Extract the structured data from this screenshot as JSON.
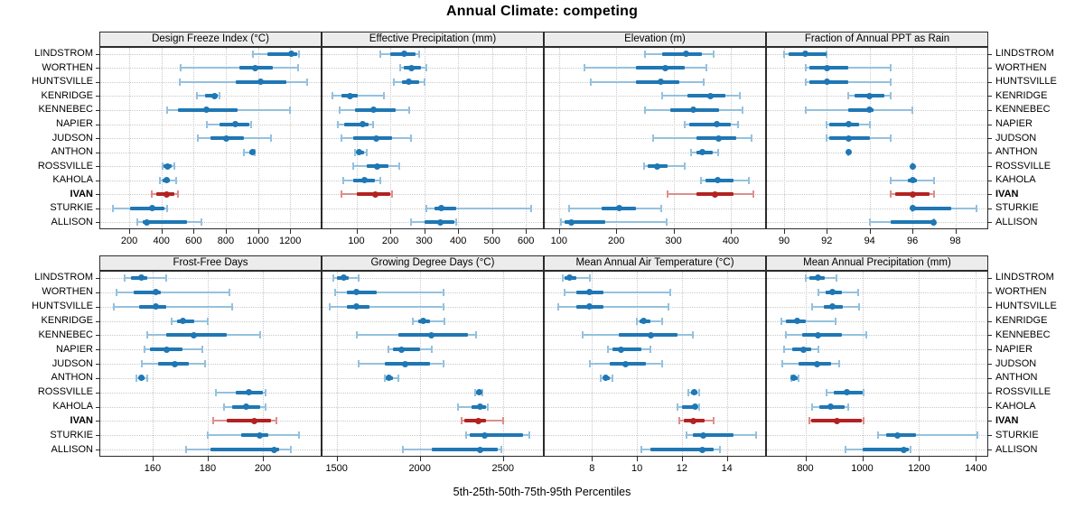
{
  "title": "Annual Climate: competing",
  "caption": "5th-25th-50th-75th-95th Percentiles",
  "colors": {
    "blue_main": "#1f77b4",
    "blue_light": "#94c1de",
    "red_main": "#b22222",
    "red_light": "#dd8f8d",
    "strip_bg": "#ececec",
    "grid": "#c9c9c9",
    "border": "#2b2b2b"
  },
  "chart_data": {
    "type": "dotplot-percentiles",
    "title": "Annual Climate: competing",
    "caption": "5th-25th-50th-75th-95th Percentiles",
    "percentile_labels": [
      "5th",
      "25th",
      "50th",
      "75th",
      "95th"
    ],
    "legend_position": "none",
    "grid": "dotted",
    "highlight": "IVAN",
    "stations": [
      "LINDSTROM",
      "WORTHEN",
      "HUNTSVILLE",
      "KENRIDGE",
      "KENNEBEC",
      "NAPIER",
      "JUDSON",
      "ANTHON",
      "ROSSVILLE",
      "KAHOLA",
      "IVAN",
      "STURKIE",
      "ALLISON"
    ],
    "panels": [
      {
        "title": "Design Freeze Index (°C)",
        "row": 0,
        "col": 0,
        "xlim": [
          20,
          1390
        ],
        "ticks": [
          200,
          400,
          600,
          800,
          1000,
          1200
        ],
        "series": [
          [
            970,
            1060,
            1210,
            1245,
            1255
          ],
          [
            520,
            885,
            985,
            1095,
            1250
          ],
          [
            515,
            860,
            1015,
            1175,
            1305
          ],
          [
            620,
            670,
            730,
            750,
            760
          ],
          [
            435,
            505,
            680,
            875,
            1200
          ],
          [
            685,
            760,
            860,
            945,
            955
          ],
          [
            625,
            705,
            805,
            915,
            1080
          ],
          [
            910,
            945,
            965,
            975,
            980
          ],
          [
            405,
            415,
            440,
            465,
            480
          ],
          [
            390,
            405,
            430,
            450,
            490
          ],
          [
            340,
            370,
            430,
            480,
            505
          ],
          [
            100,
            205,
            345,
            420,
            435
          ],
          [
            250,
            285,
            310,
            560,
            650
          ]
        ]
      },
      {
        "title": "Effective Precipitation (mm)",
        "row": 0,
        "col": 1,
        "xlim": [
          0,
          650
        ],
        "ticks": [
          100,
          200,
          300,
          400,
          500,
          600
        ],
        "series": [
          [
            170,
            200,
            240,
            275,
            285
          ],
          [
            230,
            240,
            262,
            290,
            305
          ],
          [
            210,
            235,
            255,
            285,
            300
          ],
          [
            30,
            55,
            80,
            105,
            180
          ],
          [
            50,
            95,
            150,
            215,
            255
          ],
          [
            45,
            65,
            118,
            135,
            150
          ],
          [
            55,
            90,
            158,
            205,
            260
          ],
          [
            95,
            103,
            108,
            122,
            130
          ],
          [
            90,
            130,
            160,
            195,
            225
          ],
          [
            60,
            90,
            125,
            155,
            170
          ],
          [
            55,
            100,
            155,
            200,
            205
          ],
          [
            305,
            330,
            350,
            395,
            615
          ],
          [
            260,
            300,
            348,
            390,
            395
          ]
        ]
      },
      {
        "title": "Elevation (m)",
        "row": 0,
        "col": 2,
        "xlim": [
          75,
          460
        ],
        "ticks": [
          100,
          200,
          300,
          400
        ],
        "series": [
          [
            250,
            280,
            322,
            350,
            370
          ],
          [
            145,
            235,
            285,
            320,
            358
          ],
          [
            155,
            235,
            278,
            310,
            353
          ],
          [
            280,
            325,
            365,
            390,
            415
          ],
          [
            250,
            295,
            335,
            380,
            420
          ],
          [
            320,
            328,
            375,
            400,
            413
          ],
          [
            265,
            340,
            378,
            410,
            437
          ],
          [
            330,
            340,
            350,
            368,
            378
          ],
          [
            248,
            255,
            272,
            290,
            320
          ],
          [
            348,
            355,
            377,
            405,
            432
          ],
          [
            290,
            340,
            372,
            405,
            440
          ],
          [
            118,
            175,
            205,
            235,
            278
          ],
          [
            103,
            110,
            122,
            180,
            288
          ]
        ]
      },
      {
        "title": "Fraction of Annual PPT as Rain",
        "row": 0,
        "col": 3,
        "xlim": [
          89.2,
          99.5
        ],
        "ticks": [
          90,
          92,
          94,
          96,
          98
        ],
        "series": [
          [
            90,
            90.2,
            91,
            92,
            92
          ],
          [
            91,
            91.2,
            92,
            93,
            95
          ],
          [
            91,
            91.2,
            92,
            93,
            95
          ],
          [
            93,
            93.3,
            94,
            94.7,
            95
          ],
          [
            91,
            93,
            94,
            94.2,
            96
          ],
          [
            92,
            92.1,
            93,
            93.5,
            94
          ],
          [
            92,
            92.1,
            93,
            94,
            95
          ],
          [
            93,
            93,
            93,
            93,
            93
          ],
          [
            96,
            96,
            96,
            96,
            96
          ],
          [
            95,
            95.8,
            96,
            96.2,
            97
          ],
          [
            95,
            95.2,
            96,
            96.8,
            97
          ],
          [
            96,
            96,
            96,
            97.8,
            99
          ],
          [
            94,
            95,
            97,
            97,
            97
          ]
        ]
      },
      {
        "title": "Frost-Free Days",
        "row": 1,
        "col": 0,
        "xlim": [
          141,
          221
        ],
        "ticks": [
          160,
          180,
          200
        ],
        "series": [
          [
            150,
            152,
            156,
            158,
            165
          ],
          [
            147,
            153,
            161,
            163,
            188
          ],
          [
            146,
            155,
            161,
            165,
            189
          ],
          [
            167,
            169,
            171,
            175,
            180
          ],
          [
            158,
            165,
            175,
            187,
            199
          ],
          [
            157,
            159,
            165,
            171,
            178
          ],
          [
            156,
            162,
            168,
            173,
            179
          ],
          [
            154,
            155,
            156,
            157,
            158
          ],
          [
            183,
            190,
            195,
            200,
            201
          ],
          [
            186,
            189,
            194,
            199,
            201
          ],
          [
            182,
            187,
            197,
            203,
            205
          ],
          [
            180,
            192,
            199,
            202,
            213
          ],
          [
            172,
            181,
            204,
            206,
            210
          ]
        ]
      },
      {
        "title": "Growing Degree Days (°C)",
        "row": 1,
        "col": 1,
        "xlim": [
          1415,
          2740
        ],
        "ticks": [
          1500,
          2000,
          2500
        ],
        "series": [
          [
            1480,
            1500,
            1540,
            1570,
            1630
          ],
          [
            1490,
            1560,
            1620,
            1740,
            2140
          ],
          [
            1460,
            1560,
            1620,
            1700,
            2140
          ],
          [
            1960,
            1990,
            2020,
            2060,
            2150
          ],
          [
            1620,
            1870,
            2070,
            2290,
            2340
          ],
          [
            1810,
            1840,
            1890,
            2000,
            2070
          ],
          [
            1630,
            1790,
            1910,
            2060,
            2140
          ],
          [
            1790,
            1795,
            1815,
            1840,
            1870
          ],
          [
            2330,
            2340,
            2355,
            2370,
            2375
          ],
          [
            2230,
            2310,
            2360,
            2400,
            2410
          ],
          [
            2250,
            2270,
            2350,
            2400,
            2500
          ],
          [
            2280,
            2300,
            2390,
            2620,
            2660
          ],
          [
            1900,
            2070,
            2360,
            2470,
            2490
          ]
        ]
      },
      {
        "title": "Mean Annual Air Temperature (°C)",
        "row": 1,
        "col": 2,
        "xlim": [
          5.9,
          15.7
        ],
        "ticks": [
          8,
          10,
          12,
          14
        ],
        "series": [
          [
            6.7,
            6.8,
            7.0,
            7.3,
            7.9
          ],
          [
            6.8,
            7.3,
            7.9,
            8.5,
            11.5
          ],
          [
            6.5,
            7.3,
            7.9,
            8.5,
            11.4
          ],
          [
            10.0,
            10.1,
            10.3,
            10.6,
            11.1
          ],
          [
            7.6,
            9.2,
            10.6,
            11.8,
            12.5
          ],
          [
            8.7,
            8.9,
            9.3,
            10.2,
            10.6
          ],
          [
            7.9,
            8.8,
            9.5,
            10.4,
            11.1
          ],
          [
            8.4,
            8.5,
            8.6,
            8.8,
            8.9
          ],
          [
            12.3,
            12.4,
            12.55,
            12.7,
            12.75
          ],
          [
            11.8,
            12.0,
            12.6,
            12.65,
            12.75
          ],
          [
            11.9,
            12.1,
            12.5,
            13.0,
            13.4
          ],
          [
            12.2,
            12.5,
            12.95,
            14.3,
            15.3
          ],
          [
            10.2,
            10.6,
            12.9,
            13.4,
            13.7
          ]
        ]
      },
      {
        "title": "Mean Annual Precipitation (mm)",
        "row": 1,
        "col": 3,
        "xlim": [
          665,
          1440
        ],
        "ticks": [
          800,
          1000,
          1200,
          1400
        ],
        "series": [
          [
            800,
            815,
            845,
            870,
            910
          ],
          [
            845,
            870,
            895,
            930,
            985
          ],
          [
            825,
            865,
            895,
            930,
            990
          ],
          [
            715,
            730,
            770,
            800,
            905
          ],
          [
            730,
            790,
            845,
            930,
            1015
          ],
          [
            725,
            755,
            795,
            820,
            845
          ],
          [
            720,
            775,
            840,
            890,
            920
          ],
          [
            750,
            752,
            758,
            772,
            775
          ],
          [
            875,
            900,
            945,
            1000,
            1005
          ],
          [
            825,
            850,
            890,
            940,
            950
          ],
          [
            815,
            820,
            910,
            1000,
            1005
          ],
          [
            1055,
            1085,
            1125,
            1190,
            1405
          ],
          [
            940,
            1000,
            1145,
            1165,
            1170
          ]
        ]
      }
    ]
  }
}
